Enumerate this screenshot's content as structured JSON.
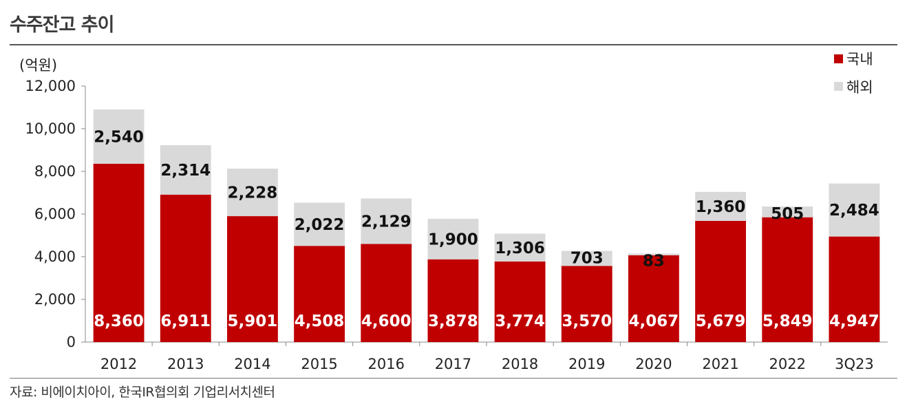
{
  "title": "수주잔고 추이",
  "source": "자료: 비에이치아이, 한국IR협의회 기업리서치센터",
  "chart_data": {
    "type": "bar",
    "stacked": true,
    "unit_label": "(억원)",
    "categories": [
      "2012",
      "2013",
      "2014",
      "2015",
      "2016",
      "2017",
      "2018",
      "2019",
      "2020",
      "2021",
      "2022",
      "3Q23"
    ],
    "series": [
      {
        "name": "국내",
        "color": "#c00000",
        "values": [
          8360,
          6911,
          5901,
          4508,
          4600,
          3878,
          3774,
          3570,
          4067,
          5679,
          5849,
          4947
        ]
      },
      {
        "name": "해외",
        "color": "#d9d9d9",
        "values": [
          2540,
          2314,
          2228,
          2022,
          2129,
          1900,
          1306,
          703,
          83,
          1360,
          505,
          2484
        ]
      }
    ],
    "ylim": [
      0,
      12000
    ],
    "yticks": [
      0,
      2000,
      4000,
      6000,
      8000,
      10000,
      12000
    ],
    "legend_position": "top-right"
  }
}
